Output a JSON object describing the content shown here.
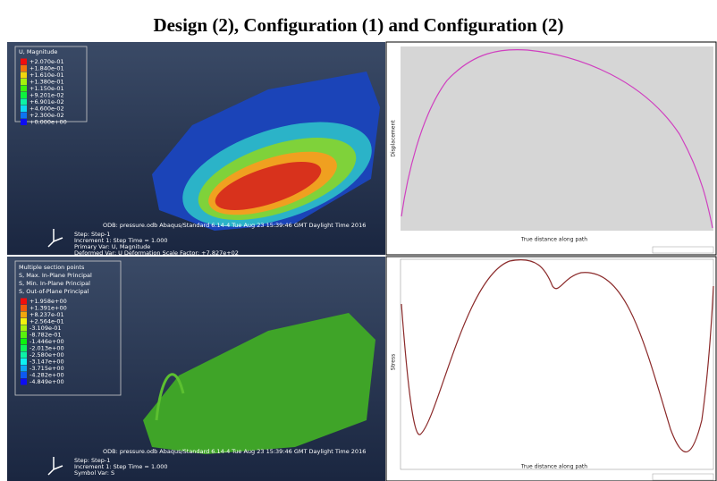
{
  "title": "Design (2), Configuration (1) and Configuration (2)",
  "panels": [
    {
      "legend_title": [
        "U, Magnitude"
      ],
      "legend_values": [
        "+2.070e-01",
        "+1.840e-01",
        "+1.610e-01",
        "+1.380e-01",
        "+1.150e-01",
        "+9.201e-02",
        "+6.901e-02",
        "+4.600e-02",
        "+2.300e-02",
        "+0.000e+00"
      ],
      "footer": [
        "ODB: pressure.odb   Abaqus/Standard 6.14-4   Tue Aug 23 15:39:46 GMT Daylight Time 2016",
        "Step: Step-1",
        "Increment    1: Step Time =    1.000",
        "Primary Var: U, Magnitude",
        "Deformed Var: U   Deformation Scale Factor: +7.827e+02"
      ]
    },
    {
      "y_label": "Displacement",
      "x_label": "True distance along path"
    },
    {
      "legend_title": [
        "Multiple section points",
        "S, Max. In-Plane Principal",
        "S, Min. In-Plane Principal",
        "S, Out-of-Plane Principal"
      ],
      "legend_values": [
        "+1.958e+00",
        "+1.391e+00",
        "+8.237e-01",
        "+2.564e-01",
        "-3.109e-01",
        "-8.782e-01",
        "-1.446e+00",
        "-2.013e+00",
        "-2.580e+00",
        "-3.147e+00",
        "-3.715e+00",
        "-4.282e+00",
        "-4.849e+00"
      ],
      "footer": [
        "ODB: pressure.odb   Abaqus/Standard 6.14-4   Tue Aug 23 15:39:46 GMT Daylight Time 2016",
        "Step: Step-1",
        "Increment    1: Step Time =    1.000",
        "Symbol Var: S"
      ]
    },
    {
      "y_label": "Stress",
      "x_label": "True distance along path"
    }
  ]
}
